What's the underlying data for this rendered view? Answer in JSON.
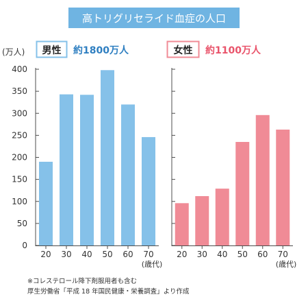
{
  "title": "高トリグリセライド血症の人口",
  "y_unit": "(万人)",
  "x_unit": "(歳代)",
  "footnotes": [
    "※コレステロール降下剤服用者も含む",
    "厚生労働省「平成 18 年国民健康・栄養調査」より作成"
  ],
  "colors": {
    "banner": "#6fb4e2",
    "male": "#85c1e9",
    "female": "#f08b96",
    "male_accent": "#2f7fc1",
    "female_accent": "#e9546b"
  },
  "chart_data": [
    {
      "type": "bar",
      "label": "男性",
      "total": "約1800万人",
      "categories": [
        "20",
        "30",
        "40",
        "50",
        "60",
        "70"
      ],
      "values": [
        190,
        343,
        342,
        398,
        320,
        246
      ],
      "ylim": [
        0,
        400
      ],
      "yticks": [
        0,
        50,
        100,
        150,
        200,
        250,
        300,
        350,
        400
      ],
      "grid": false
    },
    {
      "type": "bar",
      "label": "女性",
      "total": "約1100万人",
      "categories": [
        "20",
        "30",
        "40",
        "50",
        "60",
        "70"
      ],
      "values": [
        96,
        112,
        129,
        235,
        296,
        263
      ],
      "ylim": [
        0,
        400
      ],
      "grid": false
    }
  ]
}
